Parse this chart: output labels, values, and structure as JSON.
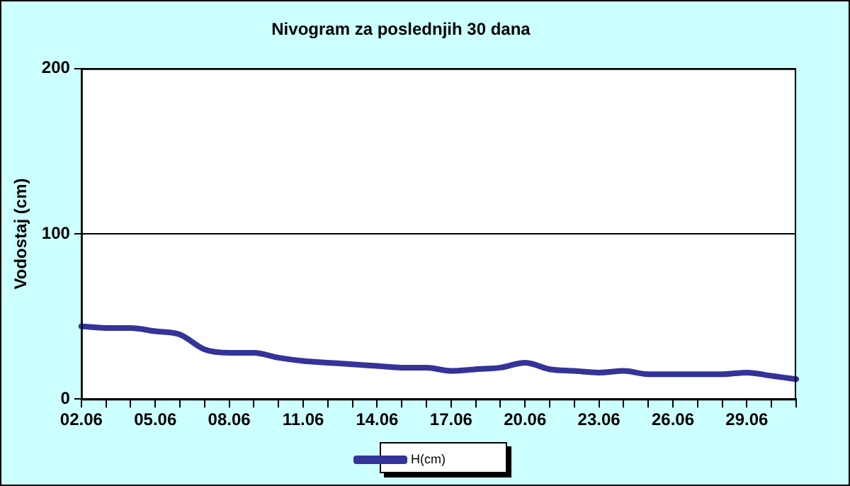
{
  "chart_data": {
    "type": "line",
    "title": "Nivogram za poslednjih 30 dana",
    "ylabel": "Vodostaj (cm)",
    "categories": [
      "02.06",
      null,
      null,
      "05.06",
      null,
      null,
      "08.06",
      null,
      null,
      "11.06",
      null,
      null,
      "14.06",
      null,
      null,
      "17.06",
      null,
      null,
      "20.06",
      null,
      null,
      "23.06",
      null,
      null,
      "26.06",
      null,
      null,
      "29.06",
      null,
      null
    ],
    "series": [
      {
        "name": "H(cm)",
        "color": "#333399",
        "values": [
          44,
          43,
          43,
          41,
          39,
          30,
          28,
          28,
          25,
          23,
          22,
          21,
          20,
          19,
          19,
          17,
          18,
          19,
          22,
          18,
          17,
          16,
          17,
          15,
          15,
          15,
          15,
          16,
          14,
          12
        ]
      }
    ],
    "ylim": [
      0,
      200
    ],
    "yticks": [
      0,
      100,
      200
    ],
    "grid": "y",
    "legend": "bottom",
    "marker": "none",
    "line_style": "solid"
  }
}
